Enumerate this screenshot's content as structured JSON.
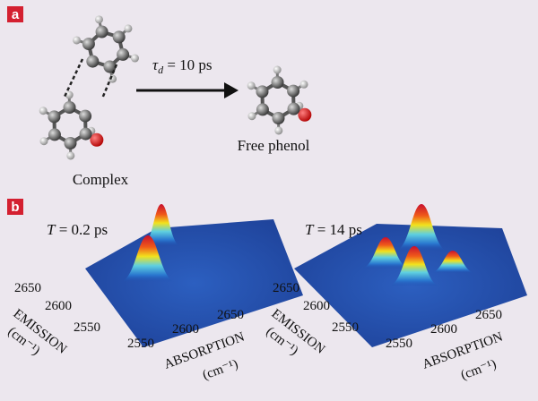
{
  "panel_a": {
    "label": "a",
    "complex_label": "Complex",
    "product_label": "Free phenol",
    "time_constant": {
      "symbol": "τ",
      "subscript": "d",
      "text": " = 10 ps"
    }
  },
  "panel_b": {
    "label": "b",
    "plots": [
      {
        "time": {
          "symbol": "T",
          "text": " = 0.2 ps"
        },
        "emission_ticks": [
          "2650",
          "2600",
          "2550"
        ],
        "emission_label": "EMISSION",
        "emission_unit": "(cm⁻¹)",
        "absorption_ticks": [
          "2550",
          "2600",
          "2650"
        ],
        "absorption_label": "ABSORPTION",
        "absorption_unit": "(cm⁻¹)"
      },
      {
        "time": {
          "symbol": "T",
          "text": " = 14 ps"
        },
        "emission_ticks": [
          "2650",
          "2600",
          "2550"
        ],
        "emission_label": "EMISSION",
        "emission_unit": "(cm⁻¹)",
        "absorption_ticks": [
          "2550",
          "2600",
          "2650"
        ],
        "absorption_label": "ABSORPTION",
        "absorption_unit": "(cm⁻¹)"
      }
    ]
  }
}
